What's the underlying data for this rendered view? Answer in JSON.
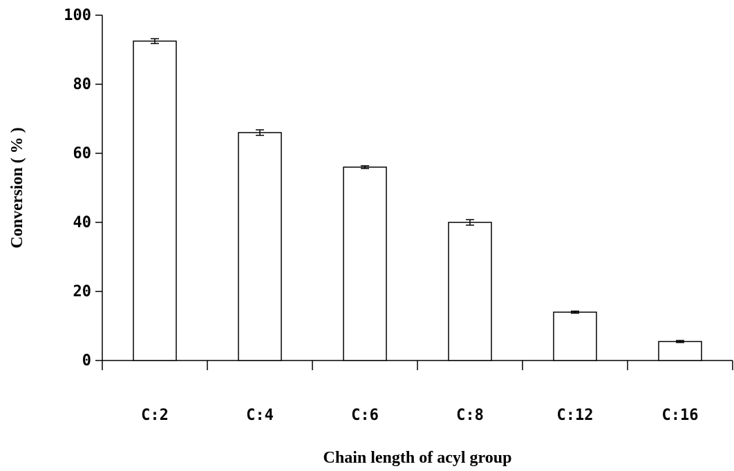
{
  "chart_data": {
    "type": "bar",
    "title": "",
    "xlabel": "Chain length of acyl group",
    "ylabel": "Conversion ( % )",
    "categories": [
      "C:2",
      "C:4",
      "C:6",
      "C:8",
      "C:12",
      "C:16"
    ],
    "series": [
      {
        "values": [
          92.5,
          66,
          56,
          40,
          14,
          5.5
        ],
        "error": [
          0.7,
          0.8,
          0.4,
          0.8,
          0.3,
          0.3
        ]
      }
    ],
    "ylim": [
      0,
      100
    ],
    "yticks": [
      "0",
      "20",
      "40",
      "60",
      "80",
      "100"
    ],
    "grid": false,
    "legend": "none",
    "colors": {
      "bar_fill": "#ffffff",
      "bar_stroke": "#000000",
      "axis": "#000000"
    }
  }
}
